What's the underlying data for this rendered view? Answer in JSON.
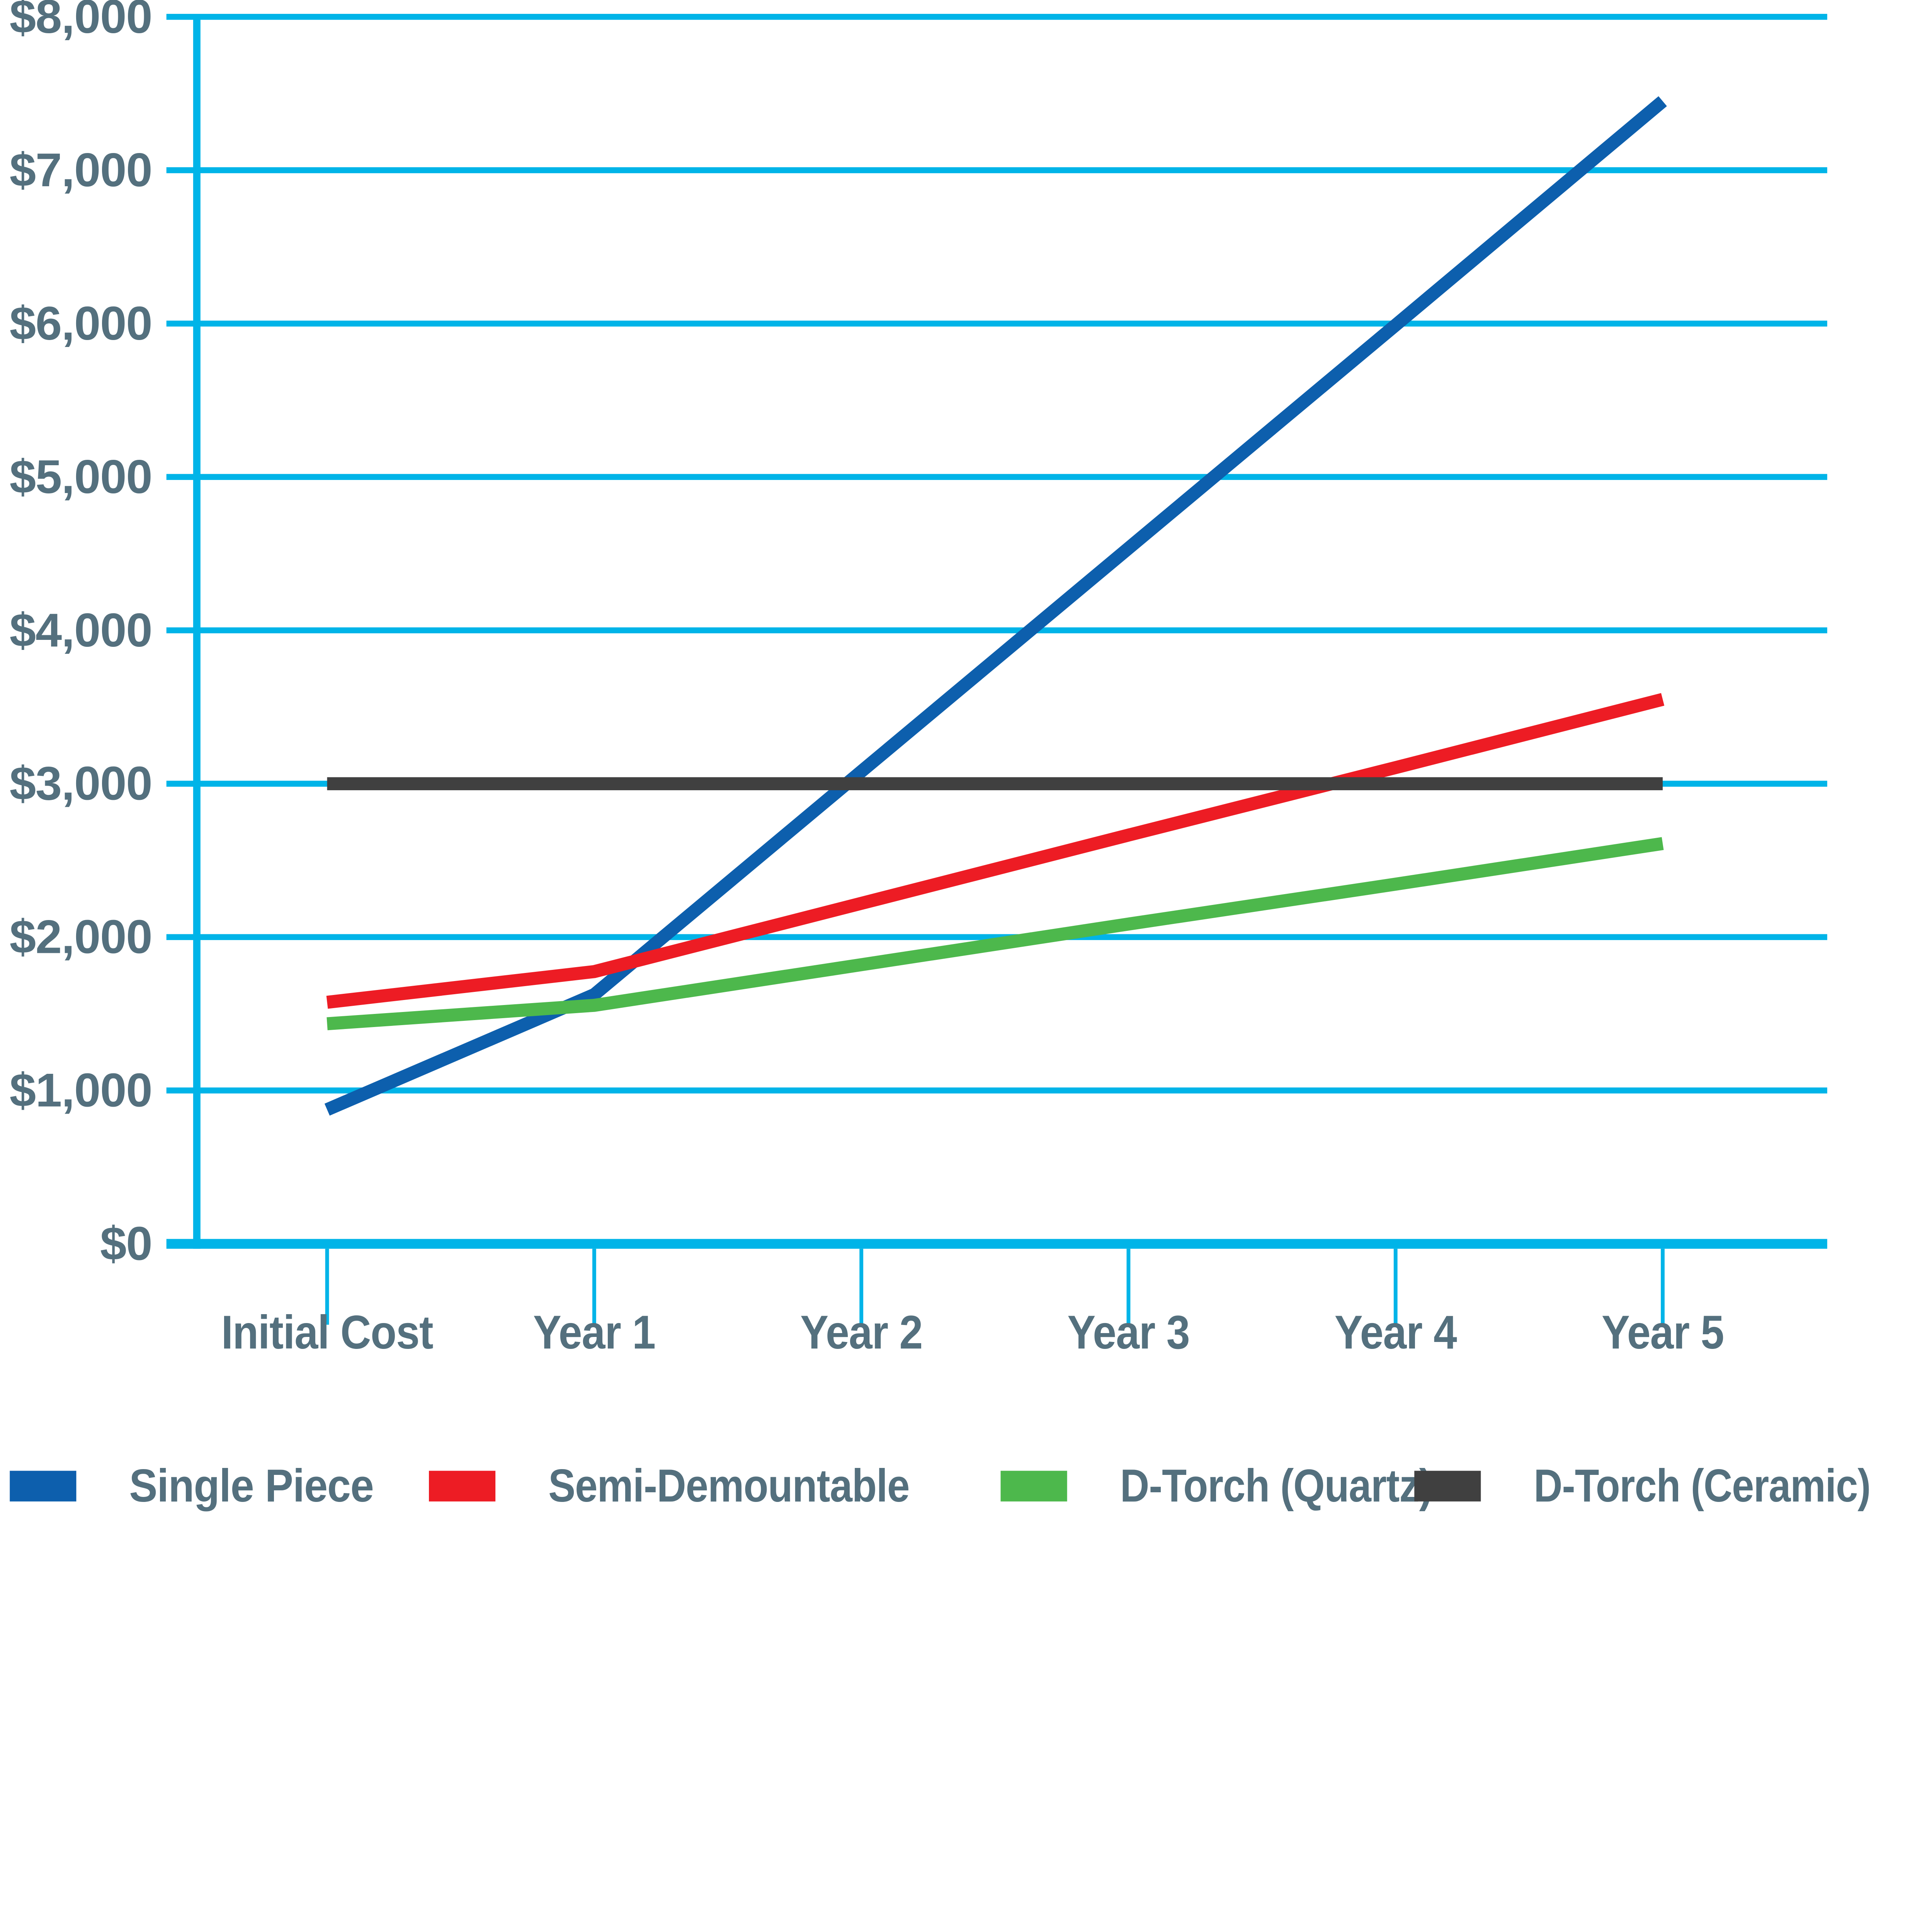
{
  "chart_data": {
    "type": "line",
    "title": "",
    "xlabel": "",
    "ylabel": "",
    "categories": [
      "Initial Cost",
      "Year 1",
      "Year 2",
      "Year 3",
      "Year 4",
      "Year 5"
    ],
    "series": [
      {
        "name": "Single Piece",
        "color": "#0D5FAD",
        "values": [
          875,
          1625,
          3080,
          4535,
          5990,
          7450
        ]
      },
      {
        "name": "Semi-Demountable",
        "color": "#ED1C24",
        "values": [
          1575,
          1775,
          2220,
          2665,
          3105,
          3550
        ]
      },
      {
        "name": "D-Torch (Quartz)",
        "color": "#4DB84C",
        "values": [
          1435,
          1555,
          1820,
          2085,
          2345,
          2610
        ]
      },
      {
        "name": "D-Torch (Ceramic)",
        "color": "#404040",
        "values": [
          3000,
          3000,
          3000,
          3000,
          3000,
          3000
        ]
      }
    ],
    "ylim": [
      0,
      8000
    ],
    "ytick_interval": 1000,
    "ytick_labels": [
      "$0",
      "$1,000",
      "$2,000",
      "$3,000",
      "$4,000",
      "$5,000",
      "$6,000",
      "$7,000",
      "$8,000"
    ],
    "grid": "horizontal-only",
    "gridline_color": "#00B4E8",
    "axis_color": "#00B4E8",
    "axis_label_color": "#54707E",
    "legend_position": "bottom"
  }
}
